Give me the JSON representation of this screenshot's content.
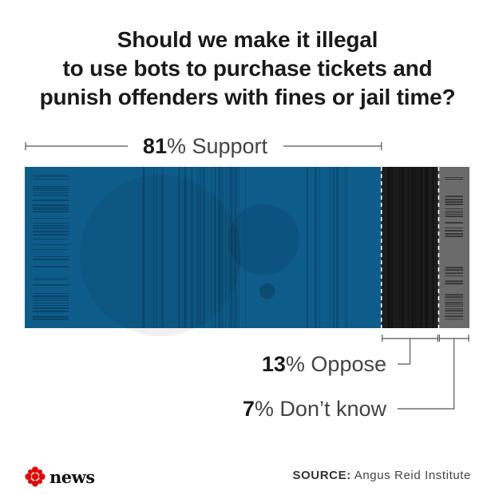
{
  "title_lines": [
    "Should we make it illegal",
    "to use bots to purchase tickets and",
    "punish offenders with fines or jail time?"
  ],
  "chart_data": {
    "type": "bar",
    "orientation": "horizontal-stacked",
    "unit": "%",
    "categories": [
      "Support",
      "Oppose",
      "Don’t know"
    ],
    "values": [
      81,
      13,
      7
    ],
    "colors": [
      "#0e5c8a",
      "#1c1c1c",
      "#6b6b6b"
    ],
    "labels": [
      {
        "value": "81",
        "pct": "%",
        "name": " Support"
      },
      {
        "value": "13",
        "pct": "%",
        "name": " Oppose"
      },
      {
        "value": "7",
        "pct": "%",
        "name": " Don’t know"
      }
    ]
  },
  "logo": {
    "text": "news",
    "icon": "cbc-gem-icon",
    "colors": [
      "#e60505"
    ]
  },
  "source": {
    "label": "SOURCE:",
    "text": " Angus Reid Institute"
  }
}
